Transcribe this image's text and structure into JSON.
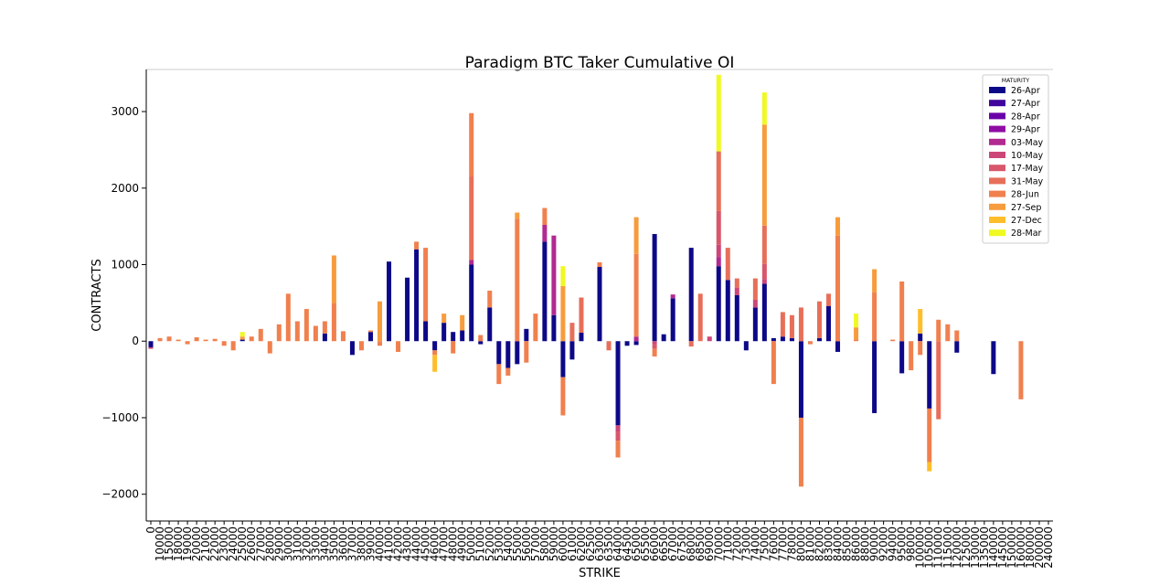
{
  "chart_data": {
    "type": "bar",
    "stacked": true,
    "title": "Paradigm BTC Taker Cumulative OI",
    "xlabel": "STRIKE",
    "ylabel": "CONTRACTS",
    "ylim": [
      -2350,
      3550
    ],
    "yticks": [
      -2000,
      -1000,
      0,
      1000,
      2000,
      3000
    ],
    "ytick_labels": [
      "−2000",
      "−1000",
      "0",
      "1000",
      "2000",
      "3000"
    ],
    "legend_title": "MATURITY",
    "legend_position": "top-right",
    "categories": [
      "0",
      "10000",
      "15000",
      "18000",
      "19000",
      "20000",
      "21000",
      "22000",
      "23000",
      "24000",
      "25000",
      "26000",
      "27000",
      "28000",
      "29000",
      "30000",
      "31000",
      "32000",
      "33000",
      "34000",
      "35000",
      "36000",
      "37000",
      "38000",
      "39000",
      "40000",
      "41000",
      "42000",
      "43000",
      "44000",
      "45000",
      "46000",
      "47000",
      "48000",
      "49000",
      "50000",
      "51000",
      "52000",
      "53000",
      "54000",
      "55000",
      "56000",
      "57000",
      "58000",
      "59000",
      "60000",
      "61000",
      "62000",
      "62500",
      "63000",
      "63500",
      "64000",
      "64500",
      "65000",
      "65500",
      "66000",
      "66500",
      "67000",
      "67500",
      "68000",
      "68500",
      "69000",
      "70000",
      "71000",
      "72000",
      "73000",
      "74000",
      "75000",
      "76000",
      "77000",
      "78000",
      "80000",
      "81000",
      "82000",
      "83000",
      "84000",
      "85000",
      "86000",
      "88000",
      "90000",
      "92000",
      "94000",
      "95000",
      "98000",
      "100000",
      "105000",
      "110000",
      "115000",
      "120000",
      "125000",
      "130000",
      "135000",
      "140000",
      "145000",
      "150000",
      "160000",
      "180000",
      "200000",
      "240000"
    ],
    "series": [
      {
        "name": "26-Apr",
        "color": "#0d0887",
        "values": [
          -80,
          0,
          0,
          0,
          0,
          0,
          0,
          0,
          0,
          0,
          20,
          0,
          0,
          0,
          0,
          0,
          0,
          0,
          0,
          100,
          0,
          0,
          -180,
          0,
          120,
          0,
          1040,
          0,
          830,
          1200,
          260,
          -120,
          240,
          120,
          140,
          1000,
          -40,
          440,
          -300,
          -350,
          -300,
          160,
          0,
          1300,
          340,
          -470,
          -240,
          110,
          0,
          970,
          0,
          -1100,
          -60,
          -50,
          0,
          1400,
          90,
          560,
          0,
          1220,
          0,
          0,
          980,
          800,
          600,
          -120,
          440,
          750,
          40,
          60,
          40,
          -1000,
          0,
          40,
          460,
          -140,
          0,
          0,
          0,
          -940,
          0,
          0,
          -420,
          0,
          100,
          -880,
          0,
          0,
          -150,
          0,
          0,
          0,
          -430,
          0,
          0,
          0,
          0,
          0,
          0
        ]
      },
      {
        "name": "27-Apr",
        "color": "#41049d",
        "values": [
          0,
          0,
          0,
          0,
          0,
          0,
          0,
          0,
          0,
          0,
          0,
          0,
          0,
          0,
          0,
          0,
          0,
          0,
          0,
          0,
          0,
          0,
          0,
          0,
          0,
          0,
          0,
          0,
          0,
          0,
          0,
          0,
          0,
          0,
          0,
          0,
          0,
          0,
          0,
          0,
          0,
          0,
          0,
          0,
          0,
          0,
          0,
          0,
          0,
          0,
          0,
          0,
          0,
          0,
          0,
          0,
          0,
          0,
          0,
          0,
          0,
          0,
          0,
          0,
          0,
          0,
          0,
          0,
          0,
          0,
          0,
          0,
          0,
          0,
          0,
          0,
          0,
          0,
          0,
          0,
          0,
          0,
          0,
          0,
          0,
          0,
          0,
          0,
          0,
          0,
          0,
          0,
          0,
          0,
          0,
          0,
          0,
          0,
          0
        ]
      },
      {
        "name": "28-Apr",
        "color": "#6a00a8",
        "values": [
          0,
          0,
          0,
          0,
          0,
          0,
          0,
          0,
          0,
          0,
          0,
          0,
          0,
          0,
          0,
          0,
          0,
          0,
          0,
          0,
          0,
          0,
          0,
          0,
          0,
          0,
          0,
          0,
          0,
          0,
          0,
          0,
          0,
          0,
          0,
          0,
          0,
          0,
          0,
          0,
          0,
          0,
          0,
          0,
          0,
          0,
          0,
          0,
          0,
          0,
          0,
          0,
          0,
          0,
          0,
          0,
          0,
          0,
          0,
          0,
          0,
          0,
          0,
          0,
          0,
          0,
          0,
          0,
          0,
          0,
          0,
          0,
          0,
          0,
          0,
          0,
          0,
          0,
          0,
          0,
          0,
          0,
          0,
          0,
          0,
          0,
          0,
          0,
          0,
          0,
          0,
          0,
          0,
          0,
          0,
          0,
          0,
          0,
          0
        ]
      },
      {
        "name": "29-Apr",
        "color": "#8f0da4",
        "values": [
          0,
          0,
          0,
          0,
          0,
          0,
          0,
          0,
          0,
          0,
          0,
          0,
          0,
          0,
          0,
          0,
          0,
          0,
          0,
          0,
          0,
          0,
          0,
          0,
          0,
          0,
          0,
          0,
          0,
          0,
          0,
          0,
          0,
          0,
          0,
          0,
          0,
          0,
          0,
          0,
          0,
          0,
          0,
          0,
          0,
          0,
          0,
          0,
          0,
          0,
          0,
          0,
          0,
          0,
          0,
          0,
          0,
          0,
          0,
          0,
          0,
          0,
          0,
          0,
          0,
          0,
          0,
          0,
          0,
          0,
          0,
          0,
          0,
          0,
          0,
          0,
          0,
          0,
          0,
          0,
          0,
          0,
          0,
          0,
          0,
          0,
          0,
          0,
          0,
          0,
          0,
          0,
          0,
          0,
          0,
          0,
          0,
          0,
          0
        ]
      },
      {
        "name": "03-May",
        "color": "#b12a90",
        "values": [
          0,
          0,
          0,
          0,
          0,
          0,
          0,
          0,
          0,
          0,
          0,
          0,
          0,
          0,
          0,
          0,
          0,
          0,
          0,
          0,
          0,
          0,
          0,
          0,
          0,
          0,
          0,
          0,
          0,
          0,
          0,
          0,
          0,
          0,
          0,
          60,
          0,
          0,
          0,
          0,
          0,
          0,
          0,
          220,
          1040,
          0,
          0,
          0,
          0,
          0,
          0,
          0,
          0,
          60,
          0,
          0,
          0,
          50,
          0,
          0,
          0,
          0,
          120,
          0,
          0,
          0,
          0,
          0,
          0,
          0,
          0,
          0,
          0,
          0,
          0,
          0,
          0,
          0,
          0,
          0,
          0,
          0,
          0,
          0,
          0,
          0,
          0,
          0,
          0,
          0,
          0,
          0,
          0,
          0,
          0,
          0,
          0,
          0,
          0
        ]
      },
      {
        "name": "10-May",
        "color": "#cc4778",
        "values": [
          -20,
          0,
          0,
          0,
          0,
          0,
          0,
          0,
          0,
          0,
          0,
          0,
          0,
          0,
          0,
          0,
          0,
          0,
          0,
          0,
          0,
          0,
          0,
          0,
          0,
          0,
          0,
          0,
          0,
          0,
          0,
          0,
          0,
          0,
          0,
          0,
          0,
          0,
          0,
          0,
          0,
          0,
          0,
          0,
          0,
          0,
          0,
          0,
          0,
          0,
          0,
          -80,
          0,
          0,
          0,
          -40,
          0,
          0,
          0,
          0,
          0,
          60,
          160,
          0,
          100,
          0,
          100,
          60,
          0,
          0,
          0,
          0,
          0,
          0,
          0,
          0,
          0,
          0,
          0,
          0,
          0,
          0,
          0,
          0,
          0,
          0,
          0,
          0,
          0,
          0,
          0,
          0,
          0,
          0,
          0,
          0,
          0,
          0,
          0
        ]
      },
      {
        "name": "17-May",
        "color": "#d8576b",
        "values": [
          0,
          0,
          0,
          0,
          0,
          0,
          0,
          0,
          0,
          0,
          0,
          0,
          0,
          0,
          0,
          0,
          0,
          0,
          0,
          0,
          0,
          0,
          0,
          0,
          0,
          0,
          0,
          0,
          0,
          0,
          0,
          0,
          0,
          0,
          0,
          0,
          0,
          0,
          0,
          0,
          0,
          0,
          0,
          0,
          0,
          0,
          0,
          0,
          0,
          0,
          0,
          -120,
          0,
          0,
          0,
          -60,
          0,
          0,
          0,
          0,
          0,
          0,
          440,
          0,
          0,
          0,
          0,
          200,
          0,
          0,
          0,
          0,
          0,
          0,
          0,
          0,
          0,
          0,
          0,
          0,
          0,
          0,
          0,
          0,
          0,
          0,
          0,
          0,
          0,
          0,
          0,
          0,
          0,
          0,
          0,
          0,
          0,
          0,
          0
        ]
      },
      {
        "name": "31-May",
        "color": "#e76f5a",
        "values": [
          0,
          0,
          0,
          0,
          0,
          0,
          0,
          0,
          0,
          0,
          0,
          0,
          0,
          0,
          0,
          0,
          0,
          0,
          0,
          0,
          0,
          0,
          0,
          0,
          0,
          0,
          0,
          0,
          0,
          0,
          0,
          0,
          0,
          0,
          0,
          1100,
          0,
          0,
          0,
          0,
          0,
          0,
          0,
          0,
          0,
          0,
          240,
          460,
          0,
          0,
          -120,
          0,
          0,
          0,
          0,
          0,
          0,
          0,
          0,
          -70,
          620,
          0,
          780,
          420,
          120,
          0,
          280,
          500,
          0,
          320,
          300,
          440,
          0,
          480,
          160,
          0,
          0,
          0,
          0,
          0,
          0,
          0,
          0,
          0,
          0,
          0,
          -1020,
          0,
          0,
          0,
          0,
          0,
          0,
          0,
          0,
          0,
          0,
          0,
          0
        ]
      },
      {
        "name": "28-Jun",
        "color": "#f0804e",
        "values": [
          0,
          40,
          60,
          20,
          -40,
          50,
          20,
          30,
          -60,
          -120,
          0,
          60,
          160,
          -160,
          220,
          620,
          260,
          420,
          200,
          160,
          500,
          130,
          0,
          -120,
          20,
          -60,
          0,
          -140,
          0,
          100,
          960,
          -60,
          0,
          -160,
          0,
          820,
          80,
          220,
          -260,
          -100,
          1600,
          -280,
          360,
          220,
          0,
          -500,
          0,
          0,
          0,
          60,
          0,
          -220,
          0,
          1080,
          0,
          -100,
          0,
          0,
          0,
          0,
          0,
          0,
          0,
          0,
          0,
          0,
          0,
          0,
          -560,
          0,
          0,
          -900,
          -40,
          0,
          0,
          1380,
          0,
          20,
          0,
          640,
          0,
          20,
          780,
          -380,
          -180,
          -700,
          280,
          220,
          140,
          0,
          0,
          0,
          0,
          0,
          0,
          -760,
          0,
          0,
          0
        ]
      },
      {
        "name": "27-Sep",
        "color": "#f79c3d",
        "values": [
          0,
          0,
          0,
          0,
          0,
          0,
          0,
          0,
          0,
          0,
          40,
          0,
          0,
          0,
          0,
          0,
          0,
          0,
          0,
          0,
          620,
          0,
          0,
          0,
          0,
          520,
          0,
          0,
          0,
          0,
          0,
          0,
          120,
          0,
          200,
          0,
          0,
          0,
          0,
          0,
          80,
          0,
          0,
          0,
          0,
          720,
          0,
          0,
          0,
          0,
          0,
          0,
          0,
          480,
          0,
          0,
          0,
          0,
          0,
          0,
          0,
          0,
          0,
          0,
          0,
          0,
          0,
          1320,
          0,
          0,
          0,
          0,
          0,
          0,
          0,
          240,
          0,
          160,
          0,
          300,
          0,
          0,
          0,
          0,
          0,
          0,
          0,
          0,
          0,
          0,
          0,
          0,
          0,
          0,
          0,
          0,
          0,
          0,
          0
        ]
      },
      {
        "name": "27-Dec",
        "color": "#febd2a",
        "values": [
          0,
          0,
          0,
          0,
          0,
          0,
          0,
          0,
          0,
          0,
          0,
          0,
          0,
          0,
          0,
          0,
          0,
          0,
          0,
          0,
          0,
          0,
          0,
          0,
          0,
          0,
          0,
          0,
          0,
          0,
          0,
          -220,
          0,
          0,
          0,
          0,
          0,
          0,
          0,
          0,
          0,
          0,
          0,
          0,
          0,
          0,
          0,
          0,
          0,
          0,
          0,
          0,
          0,
          0,
          0,
          0,
          0,
          0,
          0,
          0,
          0,
          0,
          0,
          0,
          0,
          0,
          0,
          0,
          0,
          0,
          0,
          0,
          0,
          0,
          0,
          0,
          0,
          0,
          0,
          0,
          0,
          0,
          0,
          0,
          320,
          -120,
          0,
          0,
          0,
          0,
          0,
          0,
          0,
          0,
          0,
          0,
          0,
          0,
          0
        ]
      },
      {
        "name": "28-Mar",
        "color": "#f0f921",
        "values": [
          0,
          0,
          0,
          0,
          0,
          0,
          0,
          0,
          0,
          0,
          60,
          0,
          0,
          0,
          0,
          0,
          0,
          0,
          0,
          0,
          0,
          0,
          0,
          0,
          0,
          0,
          0,
          0,
          0,
          0,
          0,
          0,
          0,
          0,
          0,
          0,
          0,
          0,
          0,
          0,
          0,
          0,
          0,
          0,
          0,
          260,
          0,
          0,
          0,
          0,
          0,
          0,
          0,
          0,
          0,
          0,
          0,
          0,
          0,
          0,
          0,
          0,
          1000,
          0,
          0,
          0,
          0,
          420,
          0,
          0,
          0,
          0,
          0,
          0,
          0,
          0,
          0,
          180,
          0,
          0,
          0,
          0,
          0,
          0,
          0,
          0,
          0,
          0,
          0,
          0,
          0,
          0,
          0,
          0,
          0,
          0,
          0,
          0,
          0
        ]
      }
    ]
  }
}
